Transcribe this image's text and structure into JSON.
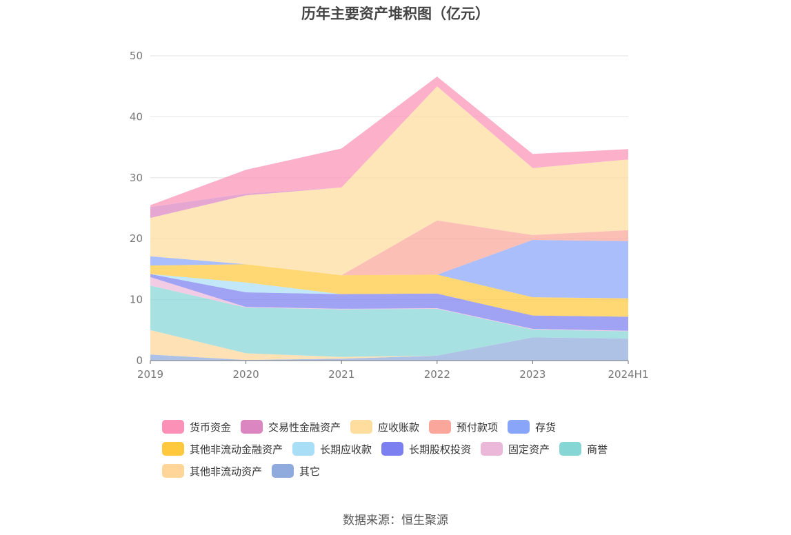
{
  "chart_data": {
    "type": "area",
    "stacked": true,
    "title": "历年主要资产堆积图（亿元）",
    "x": [
      "2019",
      "2020",
      "2021",
      "2022",
      "2023",
      "2024H1"
    ],
    "ylim": [
      0,
      50
    ],
    "yticks": [
      0,
      10,
      20,
      30,
      40,
      50
    ],
    "grid": true,
    "legend_position": "bottom",
    "series": [
      {
        "name": "其它",
        "color": "#8faadc",
        "values": [
          1.0,
          0.1,
          0.3,
          0.8,
          3.8,
          3.6
        ]
      },
      {
        "name": "其他非流动资产",
        "color": "#ffd59a",
        "values": [
          4.0,
          1.1,
          0.3,
          0.0,
          0.0,
          0.0
        ]
      },
      {
        "name": "商誉",
        "color": "#86d6d6",
        "values": [
          7.3,
          7.5,
          7.8,
          7.7,
          1.3,
          1.2
        ]
      },
      {
        "name": "固定资产",
        "color": "#ebb8d9",
        "values": [
          1.4,
          0.1,
          0.1,
          0.1,
          0.1,
          0.1
        ]
      },
      {
        "name": "长期股权投资",
        "color": "#7b7ff0",
        "values": [
          0.5,
          2.4,
          2.4,
          2.4,
          2.2,
          2.3
        ]
      },
      {
        "name": "长期应收款",
        "color": "#a9def7",
        "values": [
          0.0,
          1.6,
          0.0,
          0.0,
          0.0,
          0.0
        ]
      },
      {
        "name": "其他非流动金融资产",
        "color": "#ffc83d",
        "values": [
          1.4,
          3.0,
          3.1,
          3.1,
          3.0,
          3.0
        ]
      },
      {
        "name": "存货",
        "color": "#88a5f9",
        "values": [
          1.5,
          0.0,
          0.0,
          0.0,
          9.4,
          9.4
        ]
      },
      {
        "name": "预付款项",
        "color": "#fba69a",
        "values": [
          0.0,
          0.0,
          0.0,
          8.9,
          0.8,
          1.8
        ]
      },
      {
        "name": "应收账款",
        "color": "#ffdd9e",
        "values": [
          6.3,
          11.3,
          14.4,
          22.0,
          11.0,
          11.6
        ]
      },
      {
        "name": "交易性金融资产",
        "color": "#db85c1",
        "values": [
          1.8,
          0.3,
          0.0,
          0.0,
          0.0,
          0.0
        ]
      },
      {
        "name": "货币资金",
        "color": "#fb91b6",
        "values": [
          0.3,
          3.9,
          6.4,
          1.6,
          2.3,
          1.7
        ]
      }
    ]
  },
  "source": "数据来源：恒生聚源"
}
